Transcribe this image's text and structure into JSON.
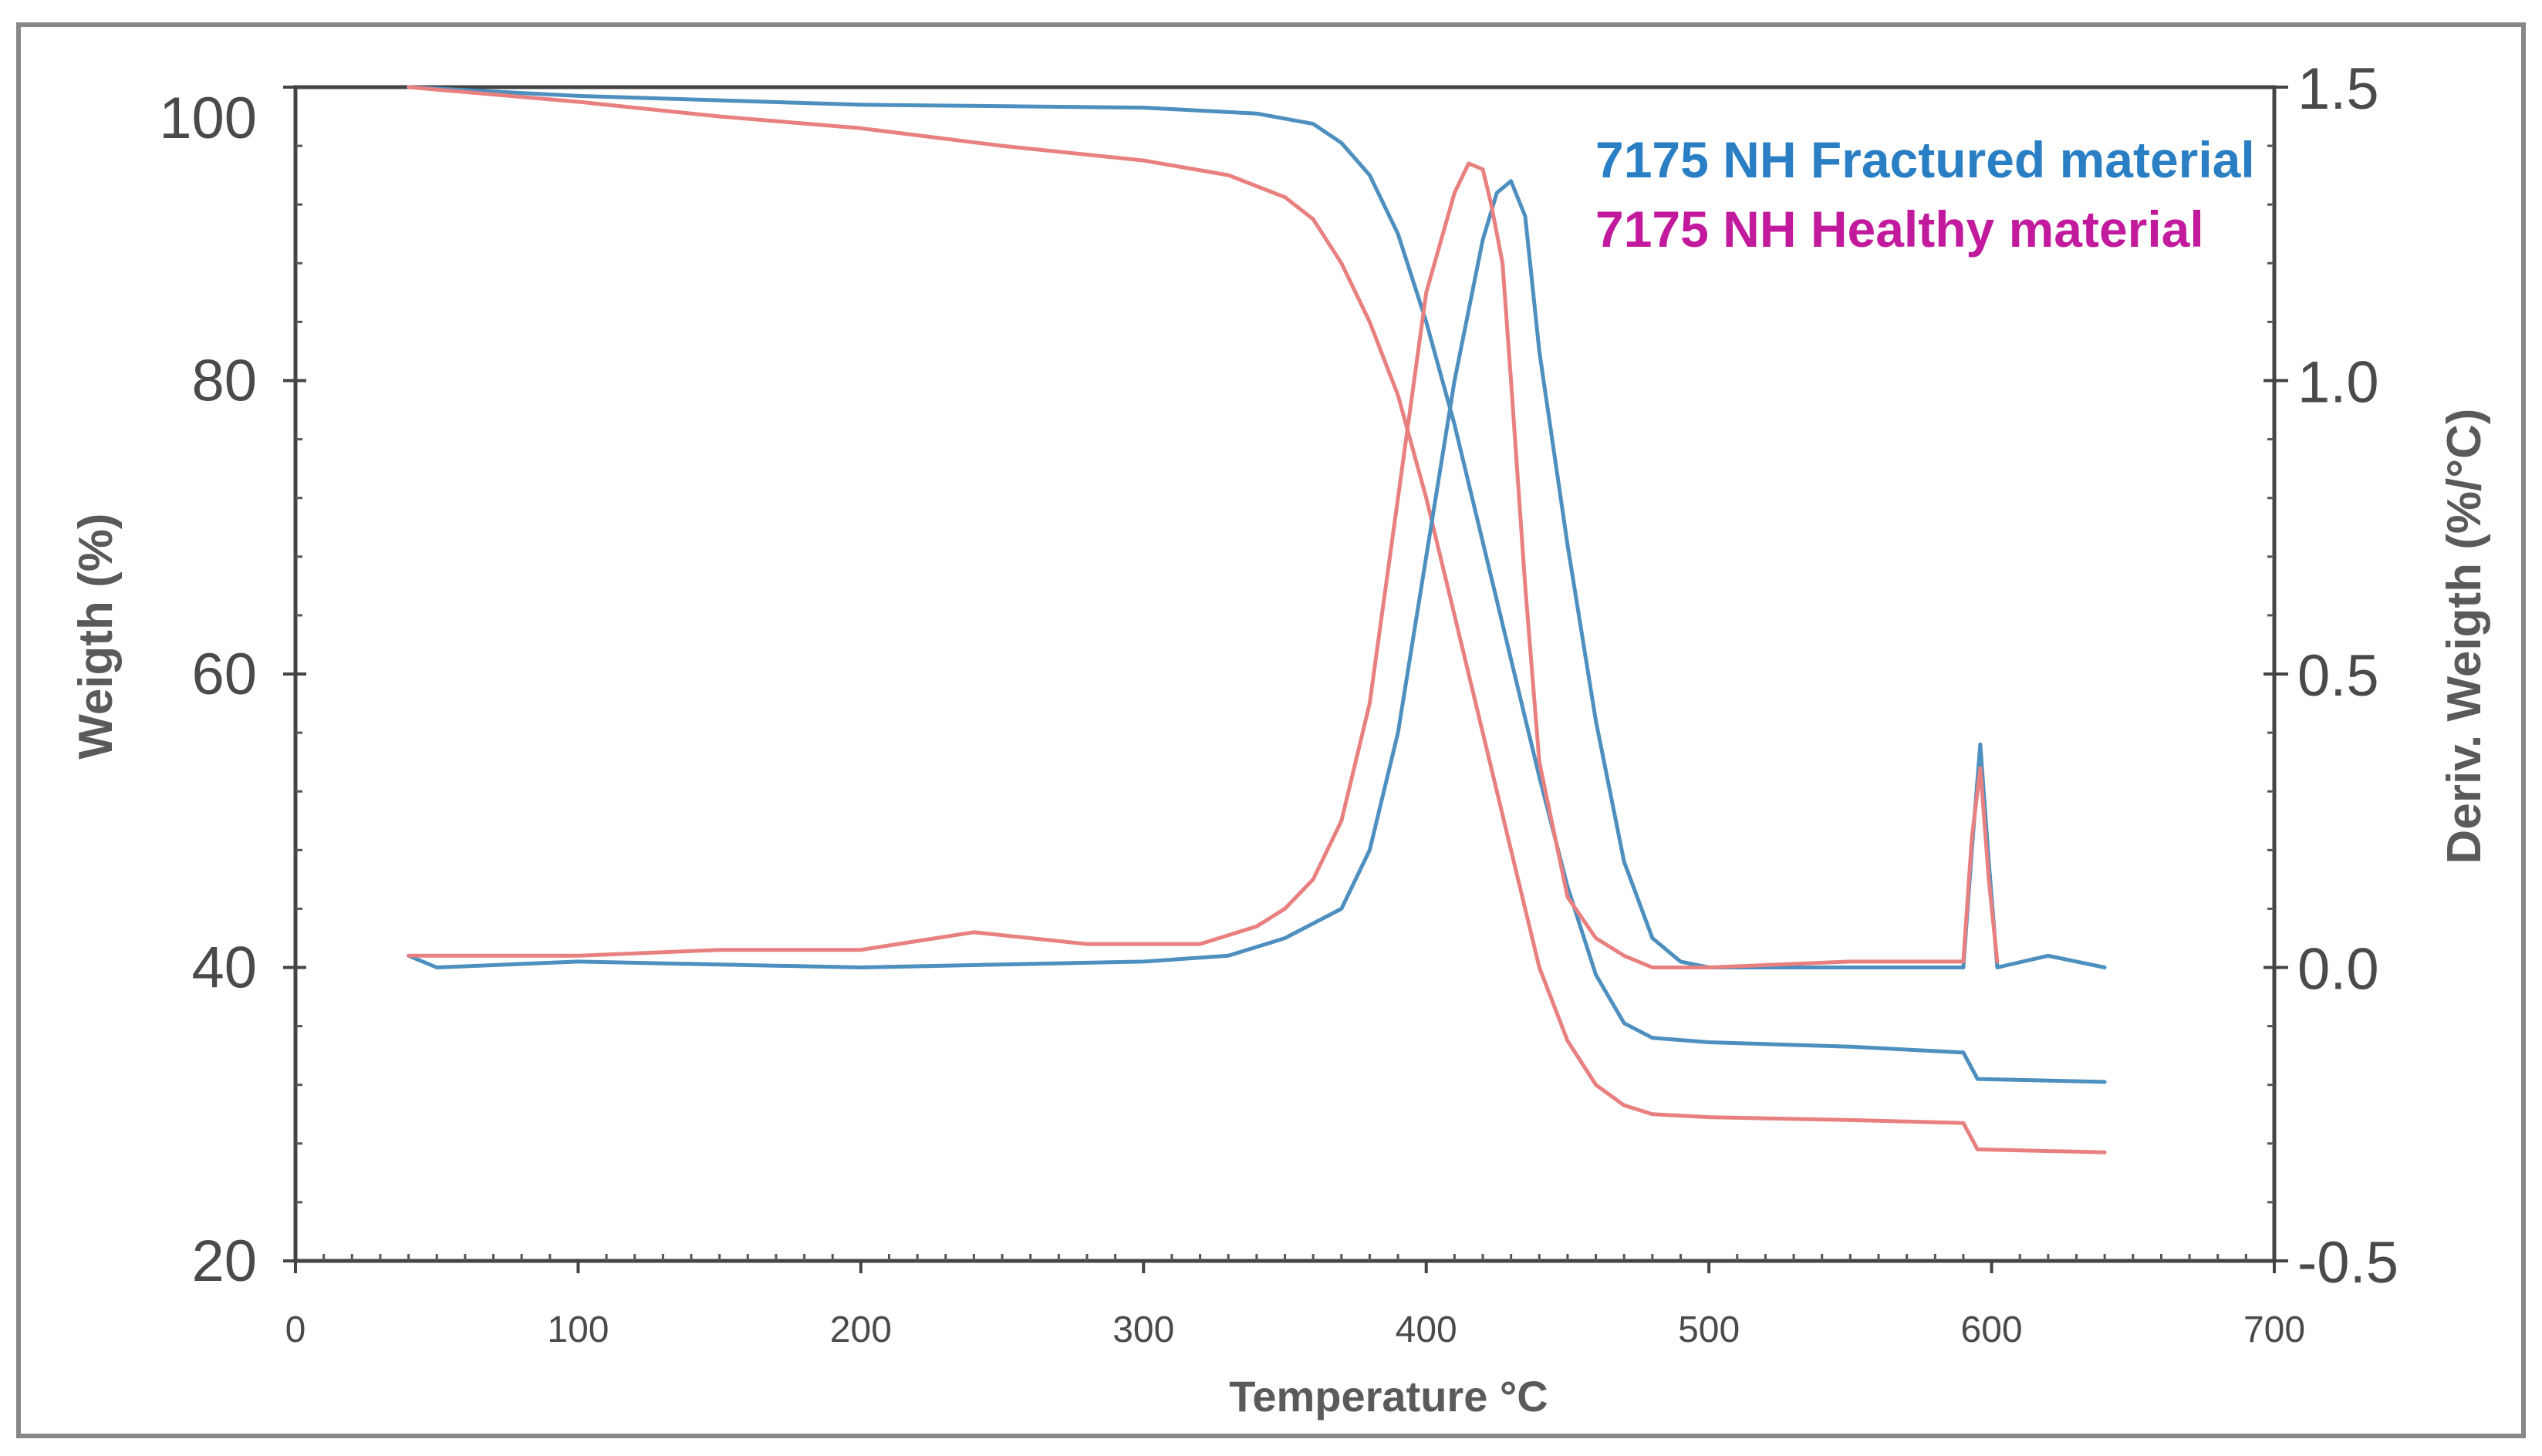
{
  "chart_data": {
    "type": "line",
    "title": "",
    "xlabel": "Temperature °C",
    "ylabel_left": "Weigth (%)",
    "ylabel_right": "Deriv. Weigth (%/°C)",
    "xlim": [
      0,
      700
    ],
    "ylim_left": [
      20,
      100
    ],
    "ylim_right": [
      -0.5,
      1.5
    ],
    "x_ticks": [
      0,
      100,
      200,
      300,
      400,
      500,
      600,
      700
    ],
    "y_left_ticks": [
      20,
      40,
      60,
      80,
      100
    ],
    "y_right_ticks": [
      -0.5,
      0.0,
      0.5,
      1.0,
      1.5
    ],
    "y_right_tick_labels": [
      "-0.5",
      "0.0",
      "0.5",
      "1.0",
      "1.5"
    ],
    "grid": false,
    "legend_position": "top-right",
    "colors": {
      "fractured": "#4d8fbf",
      "healthy": "#e98080",
      "legend_fractured": "#2a7fc4",
      "legend_healthy": "#c21a9c",
      "axis": "#444444",
      "frame": "#888888"
    },
    "legend": [
      {
        "label": "7175 NH Fractured material",
        "series": "fractured"
      },
      {
        "label": "7175 NH Healthy material",
        "series": "healthy"
      }
    ],
    "series": [
      {
        "name": "7175 NH Fractured material — weight",
        "color_key": "fractured",
        "axis": "left",
        "x": [
          40,
          100,
          200,
          300,
          340,
          360,
          370,
          380,
          390,
          400,
          410,
          420,
          430,
          440,
          450,
          460,
          470,
          480,
          500,
          550,
          590,
          595,
          640
        ],
        "y": [
          100,
          99.4,
          98.8,
          98.6,
          98.2,
          97.5,
          96.2,
          94,
          90,
          84,
          77,
          69,
          61,
          53,
          45.5,
          39.5,
          36.2,
          35.2,
          34.9,
          34.6,
          34.2,
          32.4,
          32.2
        ]
      },
      {
        "name": "7175 NH Healthy material — weight",
        "color_key": "healthy",
        "axis": "left",
        "x": [
          40,
          100,
          150,
          200,
          250,
          300,
          330,
          350,
          360,
          370,
          380,
          390,
          400,
          410,
          420,
          430,
          440,
          450,
          460,
          470,
          480,
          500,
          550,
          590,
          595,
          640
        ],
        "y": [
          100,
          99,
          98,
          97.2,
          96,
          95,
          94,
          92.5,
          91,
          88,
          84,
          79,
          72,
          64,
          56,
          48,
          40,
          35,
          32,
          30.6,
          30,
          29.8,
          29.6,
          29.4,
          27.6,
          27.4
        ]
      },
      {
        "name": "7175 NH Fractured material — derivative",
        "color_key": "fractured",
        "axis": "right",
        "x": [
          40,
          50,
          100,
          200,
          300,
          330,
          350,
          370,
          380,
          390,
          400,
          410,
          420,
          425,
          430,
          435,
          440,
          450,
          460,
          470,
          480,
          490,
          500,
          550,
          590,
          593,
          596,
          599,
          602,
          620,
          640
        ],
        "y": [
          0.02,
          0.0,
          0.01,
          0.0,
          0.01,
          0.02,
          0.05,
          0.1,
          0.2,
          0.4,
          0.7,
          1.0,
          1.24,
          1.32,
          1.34,
          1.28,
          1.05,
          0.72,
          0.42,
          0.18,
          0.05,
          0.01,
          0.0,
          0.0,
          0.0,
          0.2,
          0.38,
          0.18,
          0.0,
          0.02,
          0.0
        ]
      },
      {
        "name": "7175 NH Healthy material — derivative",
        "color_key": "healthy",
        "axis": "right",
        "x": [
          40,
          100,
          150,
          200,
          240,
          280,
          320,
          340,
          350,
          360,
          370,
          380,
          390,
          400,
          410,
          415,
          420,
          423,
          427,
          430,
          435,
          440,
          450,
          460,
          470,
          480,
          500,
          550,
          590,
          593,
          596,
          599,
          602
        ],
        "y": [
          0.02,
          0.02,
          0.03,
          0.03,
          0.06,
          0.04,
          0.04,
          0.07,
          0.1,
          0.15,
          0.25,
          0.45,
          0.8,
          1.15,
          1.32,
          1.37,
          1.36,
          1.3,
          1.2,
          1.0,
          0.65,
          0.35,
          0.12,
          0.05,
          0.02,
          0.0,
          0.0,
          0.01,
          0.01,
          0.22,
          0.34,
          0.15,
          0.01
        ]
      }
    ]
  }
}
